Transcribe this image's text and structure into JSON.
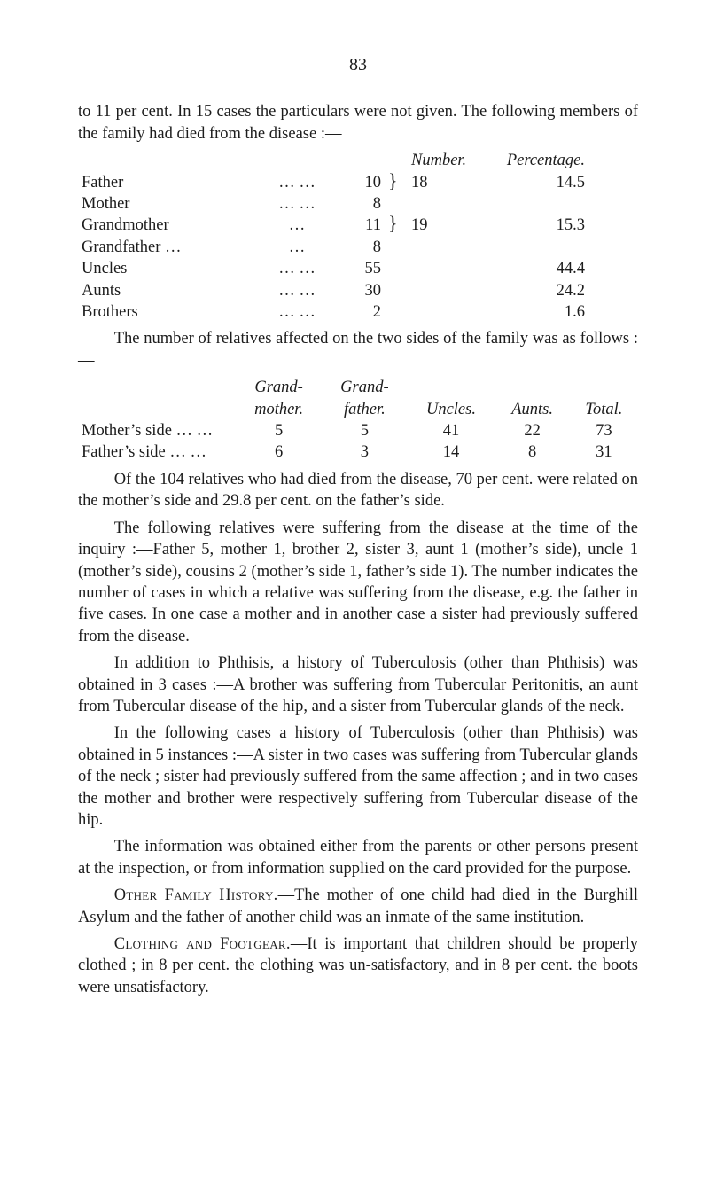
{
  "page_number": "83",
  "intro_para": "to 11 per cent. In 15 cases the particulars were not given. The following members of the family had died from the disease :—",
  "table1": {
    "head_number": "Number.",
    "head_percentage": "Percentage.",
    "rows": {
      "father": {
        "label": "Father",
        "dots": "…   …",
        "n": "10"
      },
      "mother": {
        "label": "Mother",
        "dots": "…   …",
        "n": "8"
      },
      "pair1": {
        "row": "18",
        "pct": "14.5"
      },
      "grandmother": {
        "label": "Grandmother",
        "dots": "…",
        "n": "11"
      },
      "grandfather": {
        "label": "Grandfather …",
        "dots": "…",
        "n": "8"
      },
      "pair2": {
        "row": "19",
        "pct": "15.3"
      },
      "uncles": {
        "label": "Uncles",
        "dots": "…   …",
        "n": "55",
        "pct": "44.4"
      },
      "aunts": {
        "label": "Aunts",
        "dots": "…   …",
        "n": "30",
        "pct": "24.2"
      },
      "brothers": {
        "label": "Brothers",
        "dots": "…   …",
        "n": "2",
        "pct": "1.6"
      }
    }
  },
  "second_para": "The number of relatives affected on the two sides of the family was as follows :—",
  "table2": {
    "heads": {
      "grandmother": "Grand-\nmother.",
      "grandfather": "Grand-\nfather.",
      "uncles": "Uncles.",
      "aunts": "Aunts.",
      "total": "Total."
    },
    "row_mother": {
      "label": "Mother’s side  …  …",
      "gm": "5",
      "gf": "5",
      "u": "41",
      "a": "22",
      "t": "73"
    },
    "row_father": {
      "label": "Father’s side  …  …",
      "gm": "6",
      "gf": "3",
      "u": "14",
      "a": "8",
      "t": "31"
    }
  },
  "para3": "Of the 104 relatives who had died from the disease, 70 per cent. were related on the mother’s side and 29.8 per cent. on the father’s side.",
  "para4": "The following relatives were suffering from the disease at the time of the inquiry :—Father 5, mother 1, brother 2, sister 3, aunt 1 (mother’s side), uncle 1 (mother’s side), cousins 2 (mother’s side 1, father’s side 1). The number indicates the number of cases in which a relative was suffering from the disease, e.g. the father in five cases. In one case a mother and in another case a sister had previously suffered from the disease.",
  "para5": "In addition to Phthisis, a history of Tuberculosis (other than Phthisis) was obtained in 3 cases :—A brother was suffering from Tubercular Peritonitis, an aunt from Tubercular disease of the hip, and a sister from Tubercular glands of the neck.",
  "para6": "In the following cases a history of Tuberculosis (other than Phthisis) was obtained in 5 instances :—A sister in two cases was suffering from Tubercular glands of the neck ; sister had previously suffered from the same affection ; and in two cases the mother and brother were respectively suffering from Tubercular disease of the hip.",
  "para7": "The information was obtained either from the parents or other persons present at the inspection, or from information supplied on the card provided for the purpose.",
  "para8_label": "Other Family History.",
  "para8_body": "—The mother of one child had died in the Burghill Asylum and the father of another child was an inmate of the same institution.",
  "para9_label": "Clothing and Footgear.",
  "para9_body": "—It is important that children should be properly clothed ; in 8 per cent. the clothing was un-satisfactory, and in 8 per cent. the boots were unsatisfactory."
}
